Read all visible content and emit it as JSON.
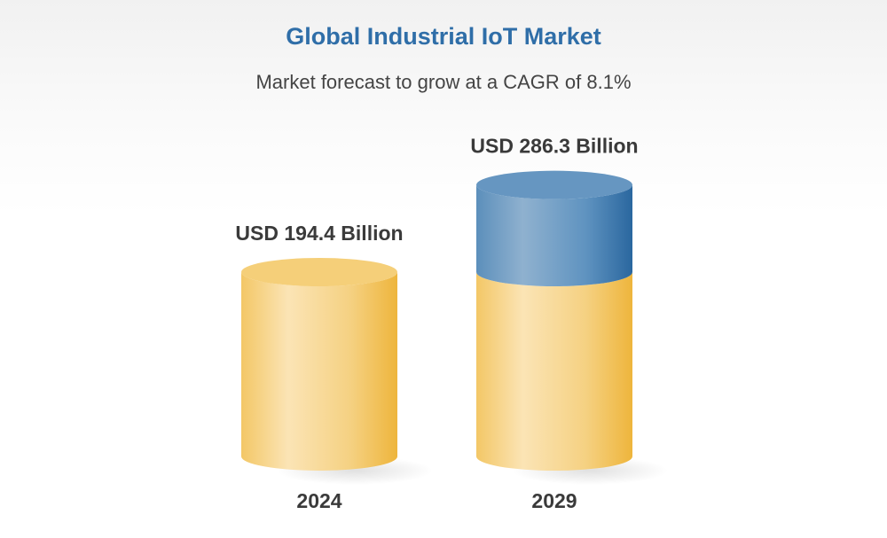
{
  "chart_data": {
    "type": "bar",
    "style": "3d-cylinder",
    "title": "Global Industrial IoT Market",
    "subtitle": "Market forecast to grow at a CAGR of 8.1%",
    "categories": [
      "2024",
      "2029"
    ],
    "values": [
      194.4,
      286.3
    ],
    "data_labels": [
      "USD 194.4 Billion",
      "USD 286.3 Billion"
    ],
    "unit": "USD Billion",
    "xlabel": "",
    "ylabel": "",
    "ylim": [
      0,
      300
    ],
    "grid": false,
    "colors": {
      "base": "#f2c04e",
      "growth": "#3f7db0",
      "title": "#2f6ea8"
    }
  }
}
